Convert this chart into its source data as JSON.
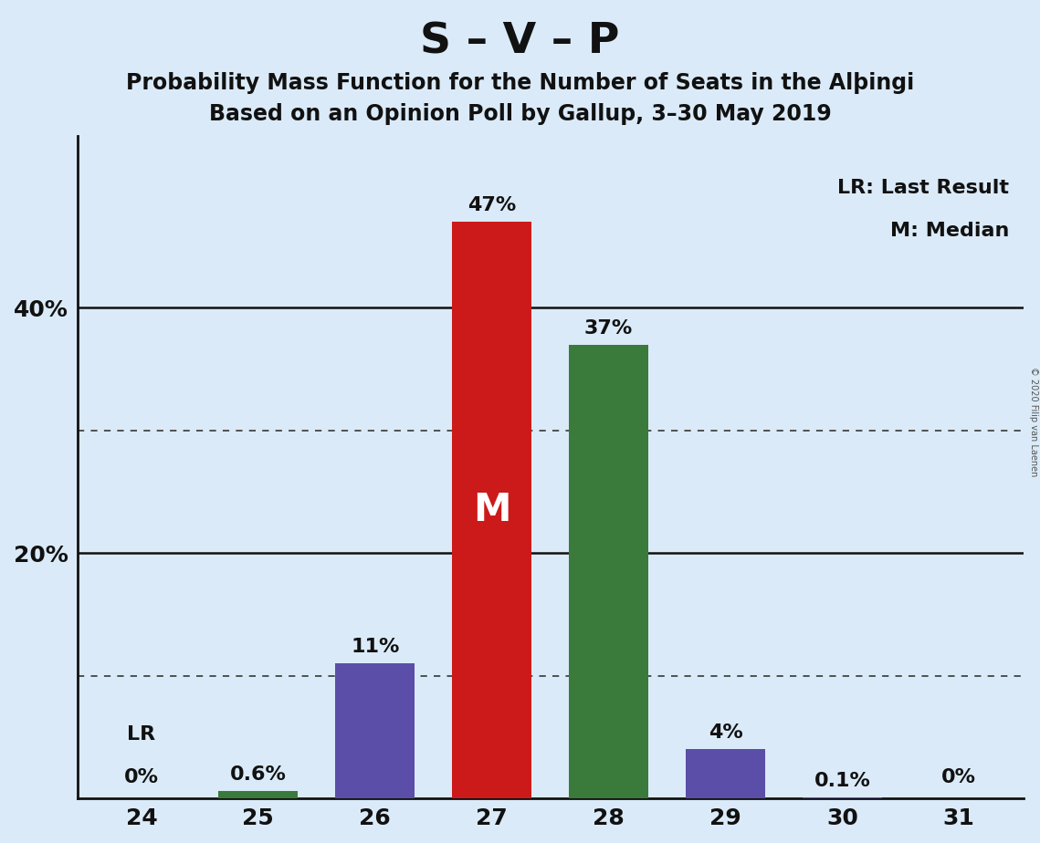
{
  "title": "S – V – P",
  "subtitle1": "Probability Mass Function for the Number of Seats in the Alþingi",
  "subtitle2": "Based on an Opinion Poll by Gallup, 3–30 May 2019",
  "copyright": "© 2020 Filip van Laenen",
  "legend_line1": "LR: Last Result",
  "legend_line2": "M: Median",
  "categories": [
    24,
    25,
    26,
    27,
    28,
    29,
    30,
    31
  ],
  "values": [
    0.0,
    0.6,
    11.0,
    47.0,
    37.0,
    4.0,
    0.1,
    0.0
  ],
  "bar_colors": [
    "#3a7a3a",
    "#3a7a3a",
    "#5b4ea8",
    "#cc1a1a",
    "#3a7a3a",
    "#5b4ea8",
    "#5b4ea8",
    "#5b4ea8"
  ],
  "labels": [
    "0%",
    "0.6%",
    "11%",
    "47%",
    "37%",
    "4%",
    "0.1%",
    "0%"
  ],
  "median_bar_idx": 3,
  "median_label": "M",
  "lr_bar_idx": 0,
  "lr_label": "LR",
  "ylim": [
    0,
    54
  ],
  "ytick_positions": [
    20,
    40
  ],
  "ytick_labels": [
    "20%",
    "40%"
  ],
  "dotted_gridlines": [
    10,
    30
  ],
  "solid_gridlines": [
    20,
    40
  ],
  "background_color": "#daeaf8",
  "title_fontsize": 34,
  "subtitle_fontsize": 17,
  "label_fontsize": 16,
  "axis_fontsize": 18,
  "legend_fontsize": 16,
  "median_label_fontsize": 30
}
